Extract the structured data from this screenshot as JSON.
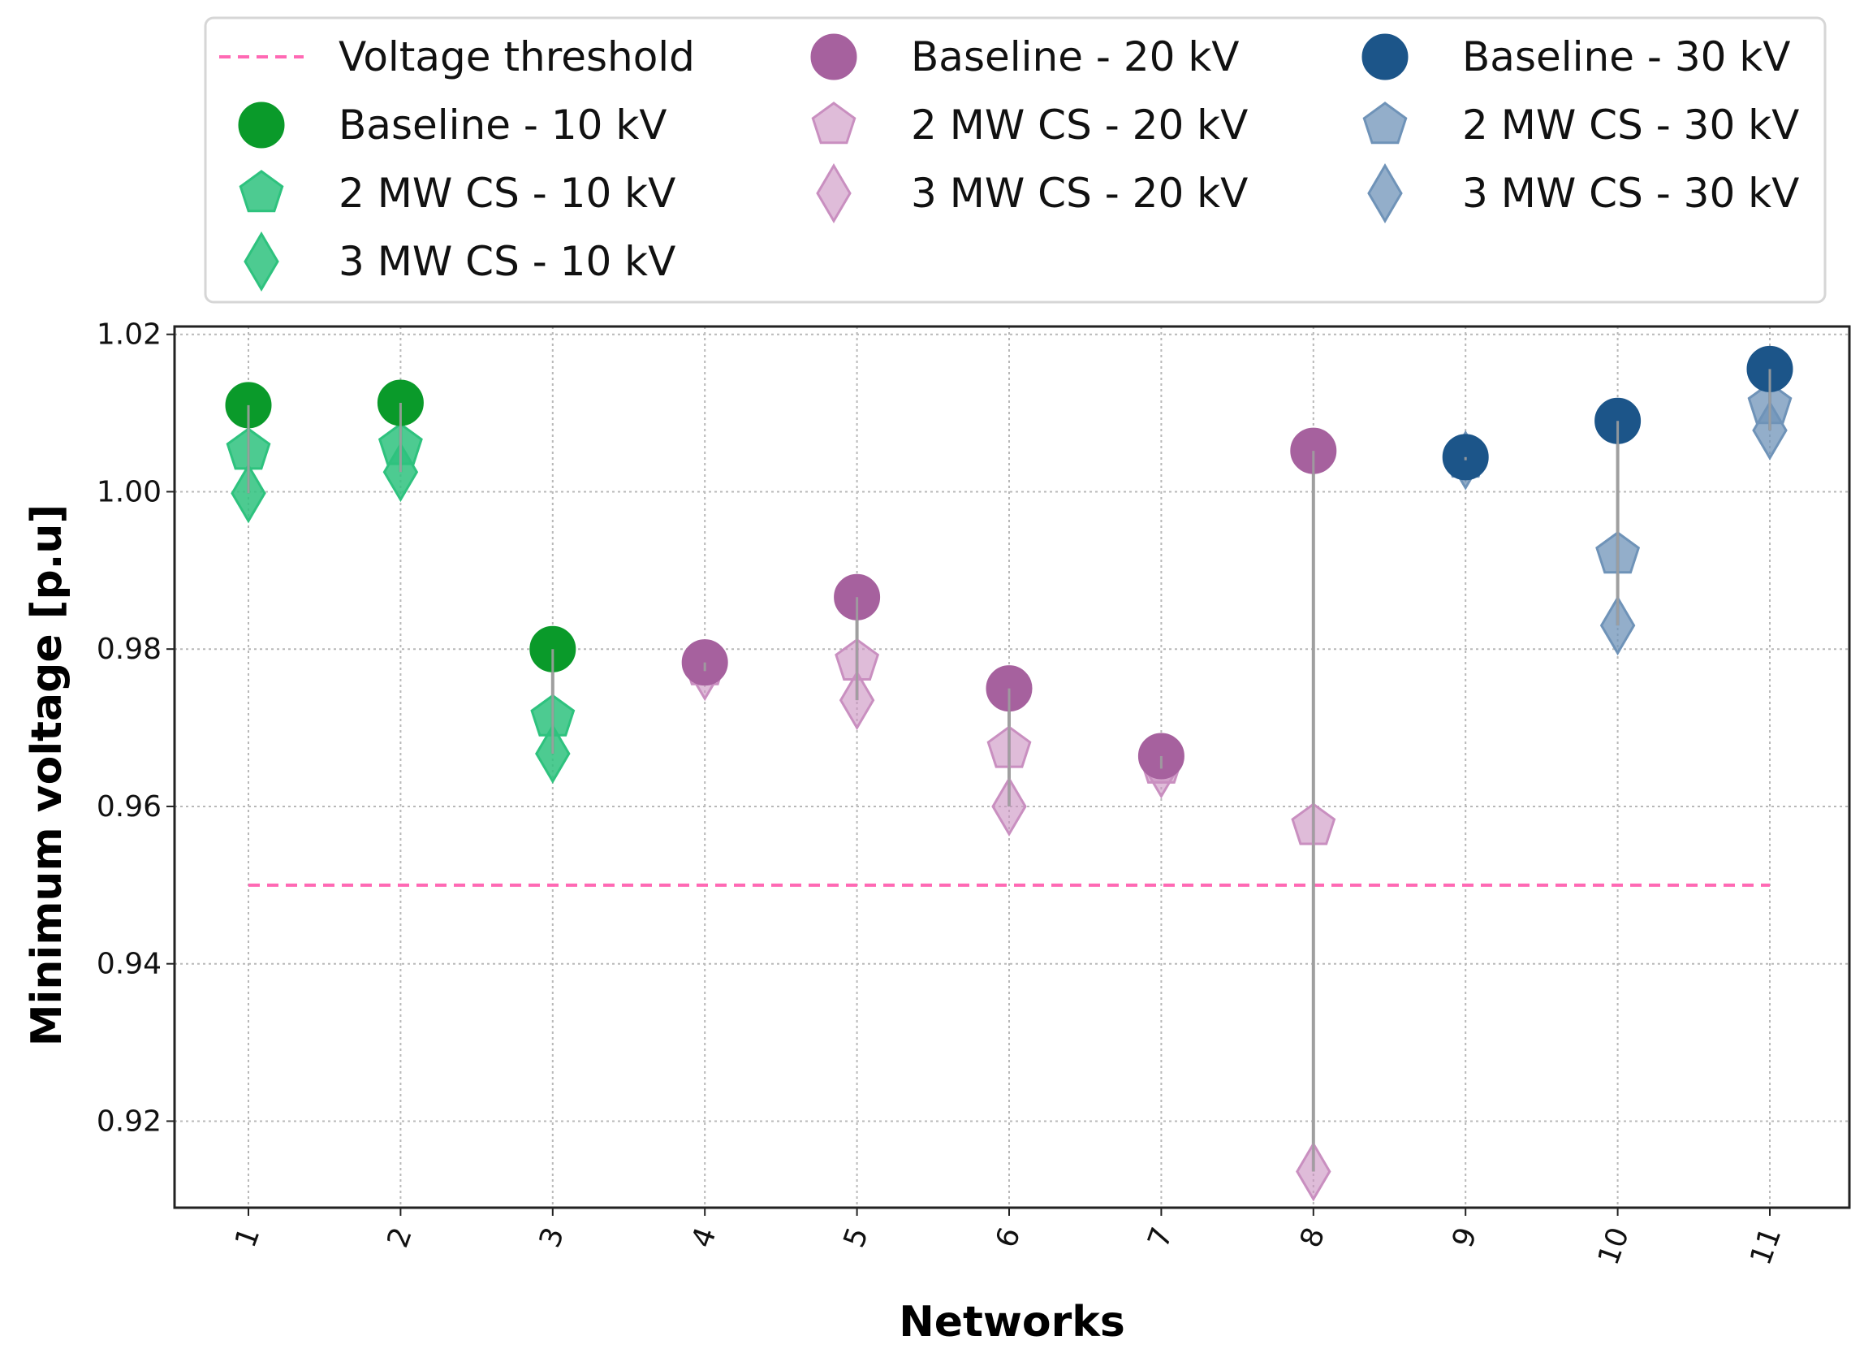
{
  "chart_data": {
    "type": "scatter",
    "title": "",
    "xlabel": "Networks",
    "ylabel": "Minimum voltage [p.u]",
    "categories": [
      "1",
      "2",
      "3",
      "4",
      "5",
      "6",
      "7",
      "8",
      "9",
      "10",
      "11"
    ],
    "ylim": [
      0.909,
      1.021
    ],
    "yticks": [
      0.92,
      0.94,
      0.96,
      0.98,
      1.0,
      1.02
    ],
    "ytick_labels": [
      "0.92",
      "0.94",
      "0.96",
      "0.98",
      "1.00",
      "1.02"
    ],
    "grid": true,
    "legend_position": "top",
    "threshold": {
      "name": "Voltage threshold",
      "value": 0.95,
      "color": "#ff69b4"
    },
    "series": [
      {
        "name": "Baseline - 10 kV",
        "marker": "circle",
        "color": "#0a9a2a",
        "alpha": 1.0,
        "values": [
          1.011,
          1.0113,
          0.98,
          null,
          null,
          null,
          null,
          null,
          null,
          null,
          null
        ]
      },
      {
        "name": "2 MW CS - 10 kV",
        "marker": "pentagon",
        "color": "#2ec27e",
        "alpha": 0.85,
        "values": [
          1.0052,
          1.0058,
          0.9713,
          null,
          null,
          null,
          null,
          null,
          null,
          null,
          null
        ]
      },
      {
        "name": "3 MW CS - 10 kV",
        "marker": "diamond",
        "color": "#2ec27e",
        "alpha": 0.85,
        "values": [
          0.9998,
          1.0025,
          0.9667,
          null,
          null,
          null,
          null,
          null,
          null,
          null,
          null
        ]
      },
      {
        "name": "Baseline - 20 kV",
        "marker": "circle",
        "color": "#a6619e",
        "alpha": 1.0,
        "values": [
          null,
          null,
          null,
          0.9783,
          0.9866,
          0.975,
          0.9664,
          1.0052,
          null,
          null,
          null
        ]
      },
      {
        "name": "2 MW CS - 20 kV",
        "marker": "pentagon",
        "color": "#c98fc0",
        "alpha": 0.6,
        "values": [
          null,
          null,
          null,
          0.9778,
          0.9784,
          0.9673,
          0.9653,
          0.9575,
          null,
          null,
          null
        ]
      },
      {
        "name": "3 MW CS - 20 kV",
        "marker": "diamond",
        "color": "#c98fc0",
        "alpha": 0.6,
        "values": [
          null,
          null,
          null,
          0.9772,
          0.9735,
          0.96,
          0.9648,
          0.9136,
          null,
          null,
          null
        ]
      },
      {
        "name": "Baseline - 30 kV",
        "marker": "circle",
        "color": "#1c5589",
        "alpha": 1.0,
        "values": [
          null,
          null,
          null,
          null,
          null,
          null,
          null,
          null,
          1.0044,
          1.009,
          1.0156
        ]
      },
      {
        "name": "2 MW CS - 30 kV",
        "marker": "pentagon",
        "color": "#6f93b8",
        "alpha": 0.75,
        "values": [
          null,
          null,
          null,
          null,
          null,
          null,
          null,
          null,
          1.0042,
          0.992,
          1.011
        ]
      },
      {
        "name": "3 MW CS - 30 kV",
        "marker": "diamond",
        "color": "#6f93b8",
        "alpha": 0.75,
        "values": [
          null,
          null,
          null,
          null,
          null,
          null,
          null,
          null,
          1.004,
          0.983,
          1.0078
        ]
      }
    ],
    "legend": [
      [
        "Voltage threshold",
        "Baseline - 10 kV",
        "2 MW CS - 10 kV",
        "3 MW CS - 10 kV"
      ],
      [
        "Baseline - 20 kV",
        "2 MW CS - 20 kV",
        "3 MW CS - 20 kV"
      ],
      [
        "Baseline - 30 kV",
        "2 MW CS - 30 kV",
        "3 MW CS - 30 kV"
      ]
    ],
    "connector_color": "#9e9e9e"
  }
}
